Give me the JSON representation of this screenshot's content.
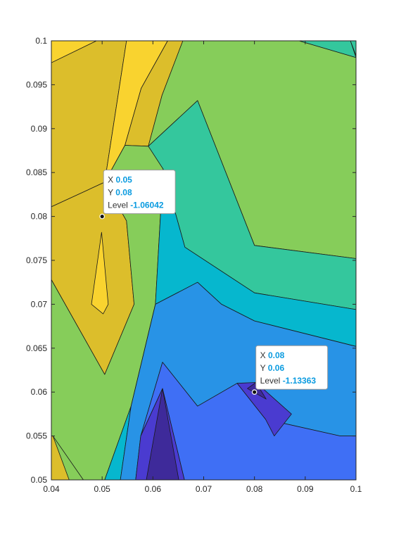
{
  "chart_data": {
    "type": "contourf",
    "title": "",
    "xlabel": "",
    "ylabel": "",
    "xlim": [
      0.04,
      0.1
    ],
    "ylim": [
      0.05,
      0.1
    ],
    "x_ticks": [
      0.04,
      0.05,
      0.06,
      0.07,
      0.08,
      0.09,
      0.1
    ],
    "x_tick_labels": [
      "0.04",
      "0.05",
      "0.06",
      "0.07",
      "0.08",
      "0.09",
      "0.1"
    ],
    "y_ticks": [
      0.05,
      0.055,
      0.06,
      0.065,
      0.07,
      0.075,
      0.08,
      0.085,
      0.09,
      0.095,
      0.1
    ],
    "y_tick_labels": [
      "0.05",
      "0.055",
      "0.06",
      "0.065",
      "0.07",
      "0.075",
      "0.08",
      "0.085",
      "0.09",
      "0.095",
      "0.1"
    ],
    "grid": false,
    "colormap": "parula",
    "region_colors": {
      "c1": "#3e2a9a",
      "c2": "#4a3bd0",
      "c3": "#3f6ff5",
      "c4": "#2893e6",
      "c5": "#06b7ce",
      "c6": "#34c79d",
      "c7": "#86cd5a",
      "c8": "#dcbe2b",
      "c9": "#f9d32f"
    },
    "contour_regions": [
      {
        "level": "c9",
        "points": [
          [
            0.04,
            0.1
          ],
          [
            0.0489,
            0.1
          ],
          [
            0.04,
            0.0975
          ]
        ]
      },
      {
        "level": "c8",
        "points": [
          [
            0.0489,
            0.1
          ],
          [
            0.0548,
            0.1
          ],
          [
            0.0505,
            0.0839
          ],
          [
            0.04,
            0.0811
          ],
          [
            0.04,
            0.0975
          ]
        ]
      },
      {
        "level": "c9",
        "points": [
          [
            0.0548,
            0.1
          ],
          [
            0.0629,
            0.1
          ],
          [
            0.0577,
            0.0946
          ],
          [
            0.0545,
            0.0881
          ],
          [
            0.0505,
            0.0839
          ]
        ]
      },
      {
        "level": "c8",
        "points": [
          [
            0.0629,
            0.1
          ],
          [
            0.0659,
            0.1
          ],
          [
            0.0618,
            0.0938
          ],
          [
            0.0591,
            0.088
          ],
          [
            0.0545,
            0.0881
          ],
          [
            0.0577,
            0.0946
          ]
        ]
      },
      {
        "level": "c7",
        "points": [
          [
            0.0659,
            0.1
          ],
          [
            0.0888,
            0.1
          ],
          [
            0.1,
            0.0981
          ],
          [
            0.1,
            0.0752
          ],
          [
            0.08,
            0.0767
          ],
          [
            0.0688,
            0.0932
          ],
          [
            0.0591,
            0.088
          ],
          [
            0.0618,
            0.0938
          ]
        ]
      },
      {
        "level": "c6",
        "points": [
          [
            0.0888,
            0.1
          ],
          [
            0.0989,
            0.1
          ],
          [
            0.1,
            0.0981
          ]
        ]
      },
      {
        "level": "c6",
        "points": [
          [
            0.0989,
            0.1
          ],
          [
            0.1,
            0.1
          ],
          [
            0.1,
            0.0983
          ]
        ]
      },
      {
        "level": "c6",
        "points": [
          [
            0.0688,
            0.0932
          ],
          [
            0.08,
            0.0767
          ],
          [
            0.1,
            0.0752
          ],
          [
            0.1,
            0.0694
          ],
          [
            0.08,
            0.0713
          ],
          [
            0.0663,
            0.0765
          ],
          [
            0.062,
            0.0854
          ],
          [
            0.0591,
            0.088
          ]
        ]
      },
      {
        "level": "c8",
        "points": [
          [
            0.04,
            0.0811
          ],
          [
            0.0505,
            0.0839
          ],
          [
            0.0548,
            0.0795
          ],
          [
            0.0563,
            0.07
          ],
          [
            0.0505,
            0.062
          ],
          [
            0.04,
            0.0728
          ]
        ]
      },
      {
        "level": "c9",
        "points": [
          [
            0.0479,
            0.07
          ],
          [
            0.0499,
            0.0782
          ],
          [
            0.0512,
            0.07
          ],
          [
            0.0502,
            0.0689
          ]
        ]
      },
      {
        "level": "c7",
        "points": [
          [
            0.04,
            0.0728
          ],
          [
            0.0505,
            0.062
          ],
          [
            0.0563,
            0.07
          ],
          [
            0.0548,
            0.0795
          ],
          [
            0.0505,
            0.0839
          ],
          [
            0.0545,
            0.0881
          ],
          [
            0.0591,
            0.088
          ],
          [
            0.062,
            0.0854
          ],
          [
            0.0605,
            0.07
          ],
          [
            0.0557,
            0.0584
          ],
          [
            0.0536,
            0.055
          ],
          [
            0.0505,
            0.05
          ],
          [
            0.0463,
            0.05
          ],
          [
            0.0403,
            0.055
          ],
          [
            0.04,
            0.055
          ]
        ]
      },
      {
        "level": "c8",
        "points": [
          [
            0.04,
            0.055
          ],
          [
            0.0403,
            0.055
          ],
          [
            0.0435,
            0.05
          ],
          [
            0.04,
            0.05
          ]
        ]
      },
      {
        "level": "c5",
        "points": [
          [
            0.062,
            0.0854
          ],
          [
            0.0663,
            0.0765
          ],
          [
            0.08,
            0.0713
          ],
          [
            0.1,
            0.0694
          ],
          [
            0.1,
            0.0652
          ],
          [
            0.08,
            0.0681
          ],
          [
            0.0735,
            0.07
          ],
          [
            0.0688,
            0.0725
          ],
          [
            0.0605,
            0.07
          ],
          [
            0.0557,
            0.0584
          ],
          [
            0.0536,
            0.05
          ],
          [
            0.0505,
            0.05
          ],
          [
            0.0536,
            0.055
          ],
          [
            0.0557,
            0.0584
          ],
          [
            0.0605,
            0.07
          ]
        ]
      },
      {
        "level": "c4",
        "points": [
          [
            0.0605,
            0.07
          ],
          [
            0.0688,
            0.0725
          ],
          [
            0.0735,
            0.07
          ],
          [
            0.08,
            0.0681
          ],
          [
            0.1,
            0.0652
          ],
          [
            0.1,
            0.055
          ],
          [
            0.0969,
            0.055
          ],
          [
            0.0822,
            0.0569
          ],
          [
            0.0766,
            0.061
          ],
          [
            0.0688,
            0.0584
          ],
          [
            0.0619,
            0.0634
          ],
          [
            0.0576,
            0.055
          ],
          [
            0.0566,
            0.05
          ],
          [
            0.0536,
            0.05
          ],
          [
            0.0557,
            0.0584
          ]
        ]
      },
      {
        "level": "c3",
        "points": [
          [
            0.0619,
            0.0634
          ],
          [
            0.0688,
            0.0584
          ],
          [
            0.0766,
            0.061
          ],
          [
            0.0822,
            0.0569
          ],
          [
            0.0969,
            0.055
          ],
          [
            0.1,
            0.055
          ],
          [
            0.1,
            0.05
          ],
          [
            0.0662,
            0.05
          ],
          [
            0.0619,
            0.0604
          ],
          [
            0.0576,
            0.055
          ]
        ]
      },
      {
        "level": "c2",
        "points": [
          [
            0.0576,
            0.055
          ],
          [
            0.0619,
            0.0604
          ],
          [
            0.0662,
            0.05
          ],
          [
            0.0566,
            0.05
          ]
        ]
      },
      {
        "level": "c2",
        "points": [
          [
            0.0766,
            0.061
          ],
          [
            0.0822,
            0.0569
          ],
          [
            0.0839,
            0.055
          ],
          [
            0.0873,
            0.0575
          ],
          [
            0.0803,
            0.0611
          ]
        ]
      },
      {
        "level": "c1",
        "points": [
          [
            0.0587,
            0.05
          ],
          [
            0.0619,
            0.0604
          ],
          [
            0.0651,
            0.05
          ]
        ]
      },
      {
        "level": "c1",
        "points": [
          [
            0.0786,
            0.0604
          ],
          [
            0.0803,
            0.0611
          ],
          [
            0.0823,
            0.0592
          ]
        ]
      }
    ],
    "data_tips": [
      {
        "x": 0.05,
        "y": 0.08,
        "level": -1.06042,
        "x_label": "X",
        "y_label": "Y",
        "level_label": "Level",
        "x_text": "0.05",
        "y_text": "0.08",
        "level_text": "-1.06042"
      },
      {
        "x": 0.08,
        "y": 0.06,
        "level": -1.13363,
        "x_label": "X",
        "y_label": "Y",
        "level_label": "Level",
        "x_text": "0.08",
        "y_text": "0.06",
        "level_text": "-1.13363"
      }
    ]
  }
}
